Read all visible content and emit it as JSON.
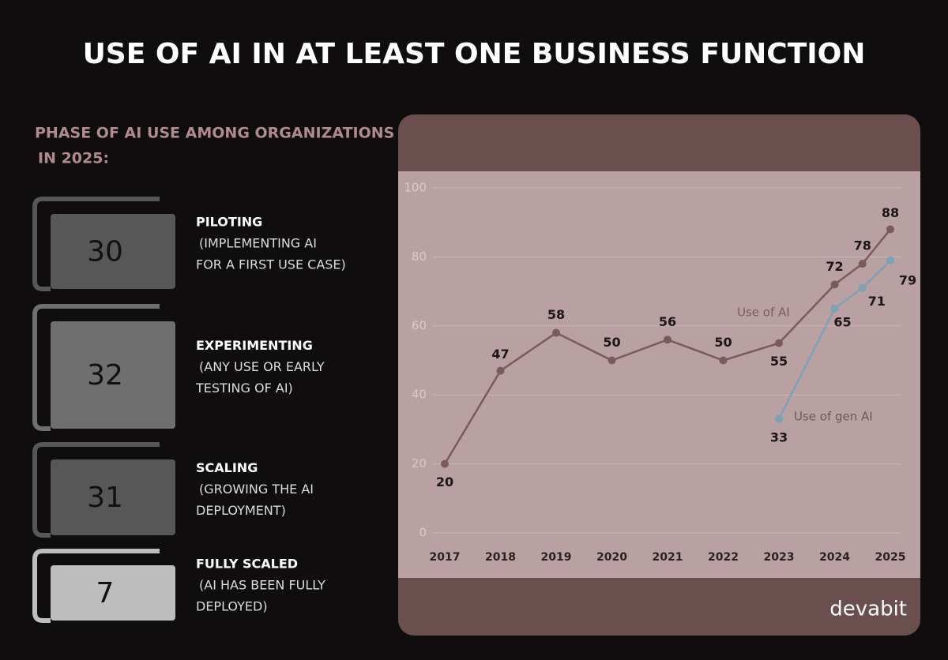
{
  "header": {
    "title": "USE OF AI IN AT LEAST ONE BUSINESS FUNCTION"
  },
  "phases_panel": {
    "heading": [
      "PHASE OF AI USE AMONG ORGANIZATIONS",
      "IN 2025:"
    ],
    "phases": [
      {
        "value": 30,
        "name": "PILOTING",
        "description": [
          "(IMPLEMENTING AI",
          "FOR A FIRST USE CASE)"
        ],
        "color": "#575757"
      },
      {
        "value": 32,
        "name": "EXPERIMENTING",
        "description": [
          "(ANY USE OR EARLY",
          "TESTING OF AI)"
        ],
        "color": "#6f6f6f"
      },
      {
        "value": 31,
        "name": "SCALING",
        "description": [
          "(GROWING THE AI",
          "DEPLOYMENT)"
        ],
        "color": "#575757"
      },
      {
        "value": 7,
        "name": "FULLY SCALED",
        "description": [
          "(AI HAS BEEN FULLY",
          "DEPLOYED)"
        ],
        "color": "#bdbdbd"
      }
    ]
  },
  "chart_data": {
    "type": "line",
    "x": [
      2017,
      2018,
      2019,
      2020,
      2021,
      2022,
      2023,
      2024,
      2024.5,
      2025
    ],
    "xlim": [
      2017,
      2025
    ],
    "xticks": [
      2017,
      2018,
      2019,
      2020,
      2021,
      2022,
      2023,
      2024,
      2025
    ],
    "ylim": [
      0,
      100
    ],
    "yticks": [
      0,
      20,
      40,
      60,
      80,
      100
    ],
    "grid": true,
    "series": [
      {
        "name": "Use of AI",
        "color": "#7b5a5a",
        "values": [
          20,
          47,
          58,
          50,
          56,
          50,
          55,
          72,
          78,
          88
        ]
      },
      {
        "name": "Use of gen AI",
        "color": "#7fa0b5",
        "values": [
          null,
          null,
          null,
          null,
          null,
          null,
          33,
          65,
          71,
          79
        ]
      }
    ]
  },
  "brand": "devabit"
}
